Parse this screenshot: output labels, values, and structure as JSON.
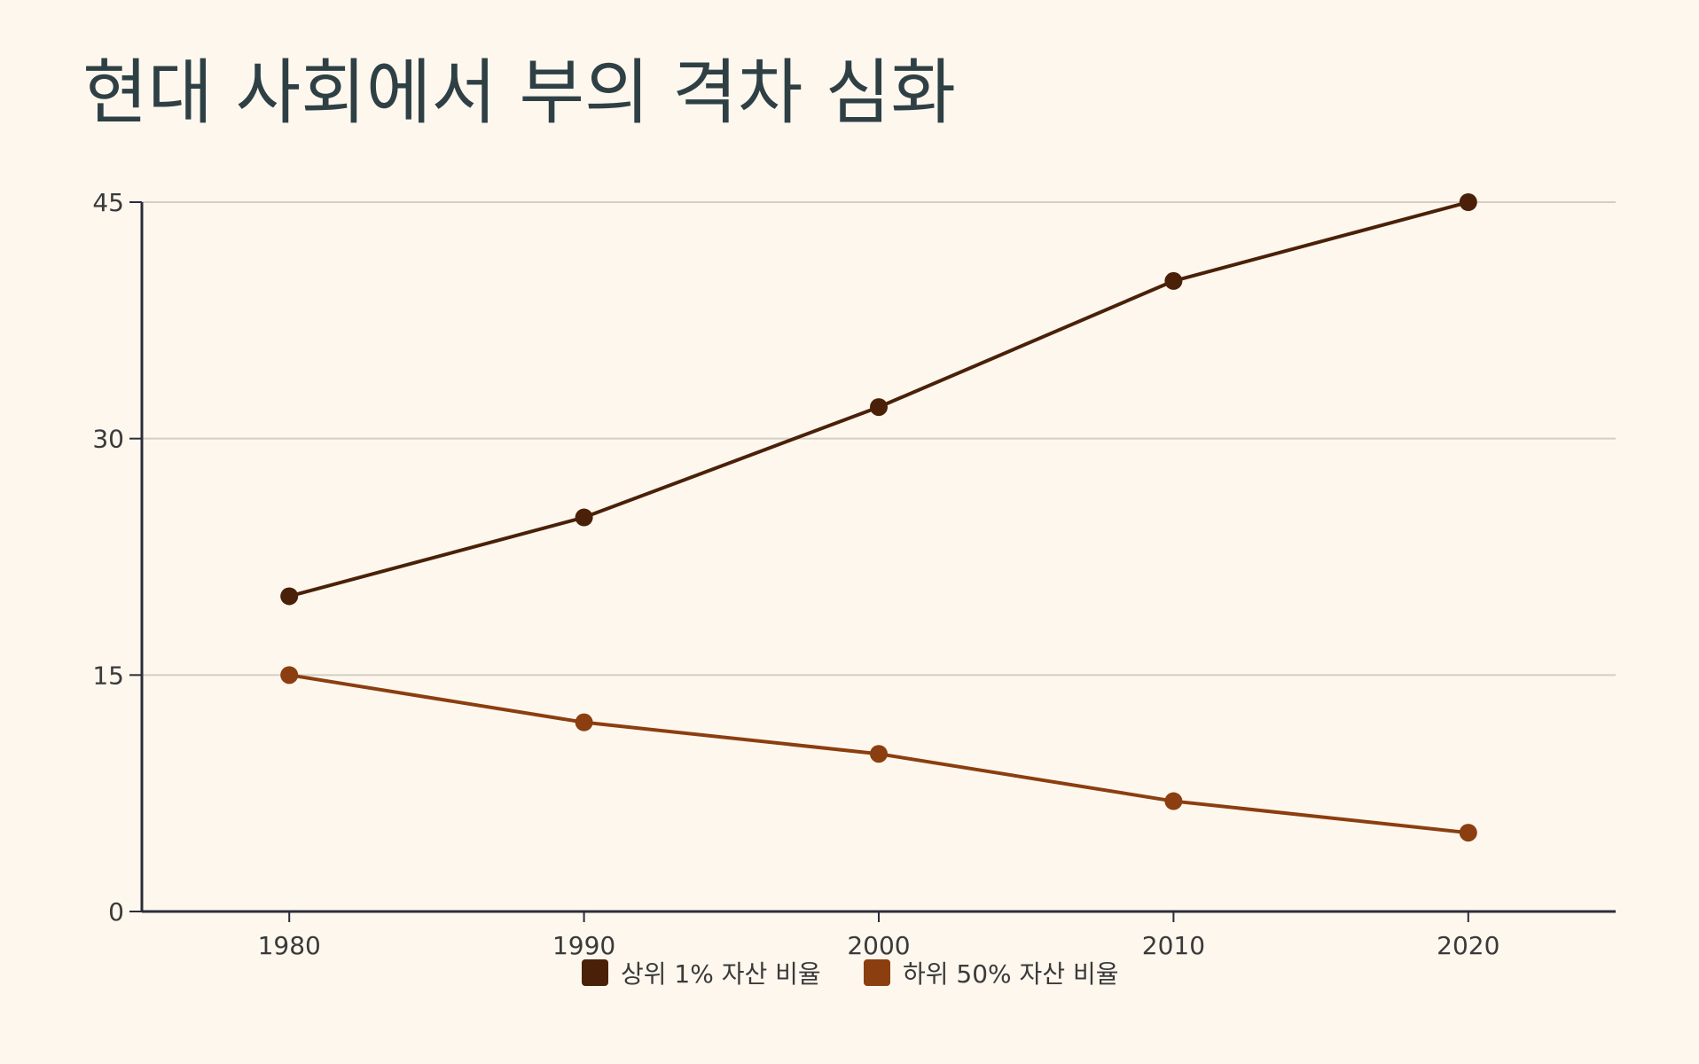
{
  "chart_data": {
    "type": "line",
    "title": "현대 사회에서 부의 격차 심화",
    "xlabel": "",
    "ylabel": "",
    "x": [
      1980,
      1990,
      2000,
      2010,
      2020
    ],
    "xlim": [
      1975,
      2025
    ],
    "ylim": [
      0,
      45
    ],
    "yticks": [
      0,
      15,
      30,
      45
    ],
    "grid": true,
    "legend": "bottom-center",
    "series": [
      {
        "name": "상위 1% 자산 비율",
        "color": "#4a2108",
        "values": [
          20,
          25,
          32,
          40,
          45
        ]
      },
      {
        "name": "하위 50% 자산 비율",
        "color": "#8b3e0f",
        "values": [
          15,
          12,
          10,
          7,
          5
        ]
      }
    ]
  }
}
